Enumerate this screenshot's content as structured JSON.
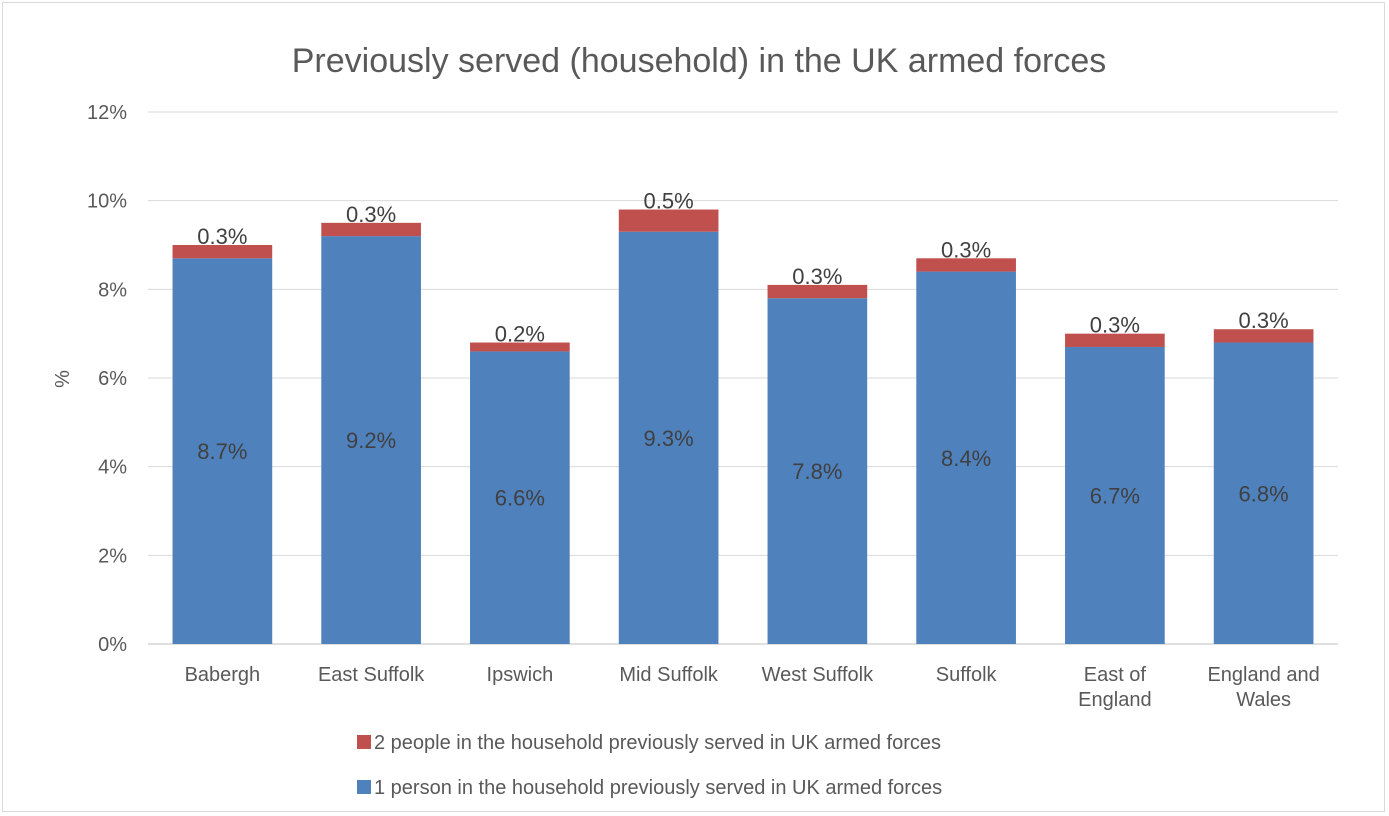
{
  "chart_data": {
    "type": "bar",
    "stacked": true,
    "title": "Previously served (household) in the UK armed forces",
    "ylabel": "%",
    "ylim": [
      0,
      12
    ],
    "y_ticks": [
      "0%",
      "2%",
      "4%",
      "6%",
      "8%",
      "10%",
      "12%"
    ],
    "categories": [
      [
        "Babergh"
      ],
      [
        "East Suffolk"
      ],
      [
        "Ipswich"
      ],
      [
        "Mid Suffolk"
      ],
      [
        "West Suffolk"
      ],
      [
        "Suffolk"
      ],
      [
        "East of",
        "England"
      ],
      [
        "England and",
        "Wales"
      ]
    ],
    "series": [
      {
        "name": "1 person in the household previously served in UK armed forces",
        "color": "#4f81bd",
        "values": [
          8.7,
          9.2,
          6.6,
          9.3,
          7.8,
          8.4,
          6.7,
          6.8
        ],
        "labels": [
          "8.7%",
          "9.2%",
          "6.6%",
          "9.3%",
          "7.8%",
          "8.4%",
          "6.7%",
          "6.8%"
        ]
      },
      {
        "name": "2 people in the household previously served in UK armed forces",
        "color": "#c0504d",
        "values": [
          0.3,
          0.3,
          0.2,
          0.5,
          0.3,
          0.3,
          0.3,
          0.3
        ],
        "labels": [
          "0.3%",
          "0.3%",
          "0.2%",
          "0.5%",
          "0.3%",
          "0.3%",
          "0.3%",
          "0.3%"
        ]
      }
    ],
    "legend_order": [
      1,
      0
    ],
    "legend": "bottom",
    "grid": true
  }
}
